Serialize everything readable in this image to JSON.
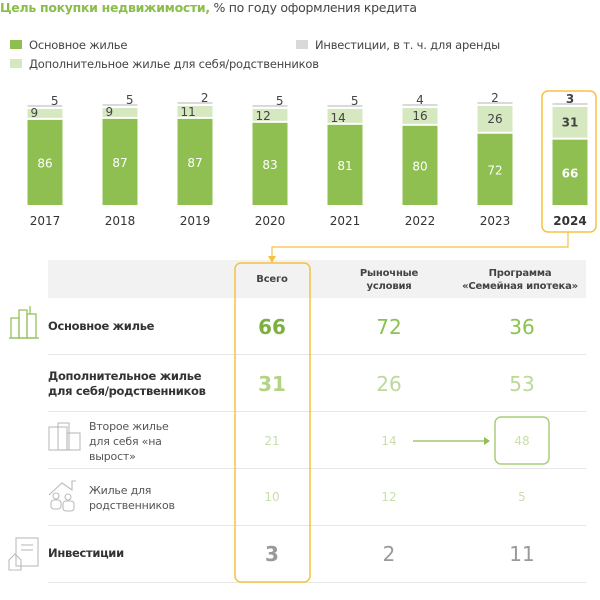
{
  "title": {
    "bold": "Цель покупки недвижимости,",
    "rest": " % по году оформления кредита"
  },
  "colors": {
    "main": "#8fbf50",
    "additional": "#d6e8bf",
    "investment": "#d9d9d9",
    "highlight": "#f5c242"
  },
  "chart_data": {
    "type": "bar",
    "stacked": true,
    "categories": [
      "2017",
      "2018",
      "2019",
      "2020",
      "2021",
      "2022",
      "2023",
      "2024"
    ],
    "series": [
      {
        "name": "Основное жилье",
        "values": [
          86,
          87,
          87,
          83,
          81,
          80,
          72,
          66
        ]
      },
      {
        "name": "Дополнительное жилье для себя/родственников",
        "values": [
          9,
          9,
          11,
          12,
          14,
          16,
          26,
          31
        ]
      },
      {
        "name": "Инвестиции, в т. ч. для аренды",
        "values": [
          5,
          5,
          2,
          5,
          5,
          4,
          2,
          3
        ]
      }
    ],
    "highlighted_category": "2024",
    "ylim": [
      0,
      100
    ],
    "grid": false,
    "legend": "top"
  },
  "table": {
    "columns": [
      "Всего",
      "Рыночные условия",
      "Программа «Семейная ипотека»"
    ],
    "rows": [
      {
        "label": "Основное жилье",
        "values": [
          "66",
          "72",
          "36"
        ],
        "icon": "buildings-icon"
      },
      {
        "label": "Дополнительное жилье для себя/родственников",
        "values": [
          "31",
          "26",
          "53"
        ]
      },
      {
        "label": "Второе жилье для себя «на вырост»",
        "values": [
          "21",
          "14",
          "48"
        ],
        "icon": "apartment-icon"
      },
      {
        "label": "Жилье для родственников",
        "values": [
          "10",
          "12",
          "5"
        ],
        "icon": "family-house-icon"
      },
      {
        "label": "Инвестиции",
        "values": [
          "3",
          "2",
          "11"
        ],
        "icon": "document-house-icon"
      }
    ]
  }
}
